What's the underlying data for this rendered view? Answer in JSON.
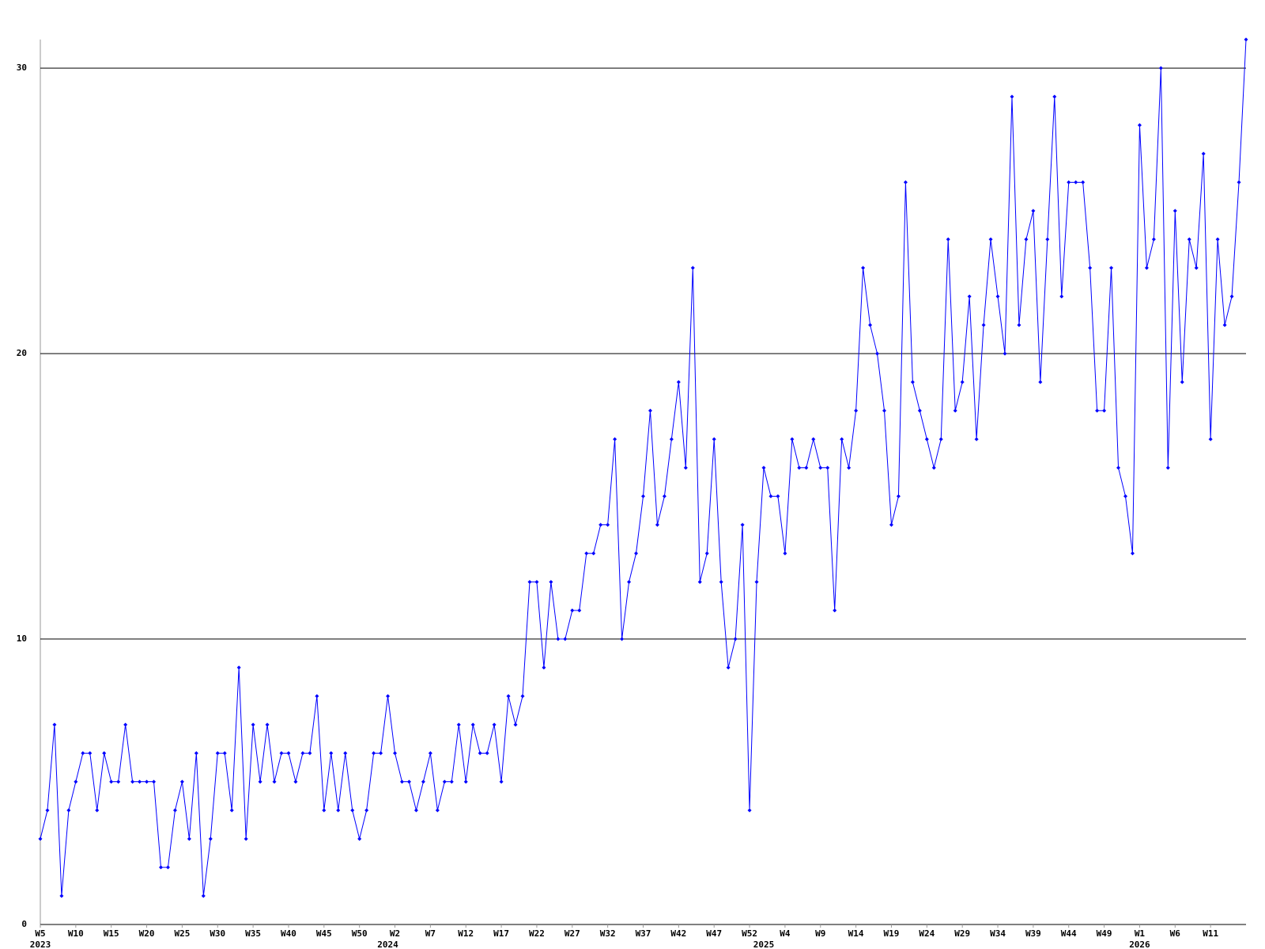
{
  "chart_data": {
    "type": "line",
    "categories": [
      "W5",
      null,
      null,
      null,
      null,
      "W10",
      null,
      null,
      null,
      null,
      "W15",
      null,
      null,
      null,
      null,
      "W20",
      null,
      null,
      null,
      null,
      "W25",
      null,
      null,
      null,
      null,
      "W30",
      null,
      null,
      null,
      null,
      "W35",
      null,
      null,
      null,
      null,
      "W40",
      null,
      null,
      null,
      null,
      "W45",
      null,
      null,
      null,
      null,
      "W50",
      null,
      null,
      null,
      null,
      "W2",
      null,
      null,
      null,
      null,
      "W7",
      null,
      null,
      null,
      null,
      "W12",
      null,
      null,
      null,
      null,
      "W17",
      null,
      null,
      null,
      null,
      "W22",
      null,
      null,
      null,
      null,
      "W27",
      null,
      null,
      null,
      null,
      "W32",
      null,
      null,
      null,
      null,
      "W37",
      null,
      null,
      null,
      null,
      "W42",
      null,
      null,
      null,
      null,
      "W47",
      null,
      null,
      null,
      null,
      "W52",
      null,
      null,
      null,
      null,
      "W4",
      null,
      null,
      null,
      null,
      "W9",
      null,
      null,
      null,
      null,
      "W14",
      null,
      null,
      null,
      null,
      "W19",
      null,
      null,
      null,
      null,
      "W24",
      null,
      null,
      null,
      null,
      "W29",
      null,
      null,
      null,
      null,
      "W34",
      null,
      null,
      null,
      null,
      "W39",
      null,
      null,
      null,
      null,
      "W44",
      null,
      null,
      null,
      null,
      "W49",
      null,
      null,
      null,
      null,
      "W1",
      null,
      null,
      null,
      null,
      "W6",
      null,
      null,
      null,
      null,
      "W11",
      null,
      null,
      null,
      null,
      null
    ],
    "category_years": [
      "2023",
      null,
      null,
      null,
      null,
      null,
      null,
      null,
      null,
      null,
      null,
      null,
      null,
      null,
      null,
      null,
      null,
      null,
      null,
      null,
      null,
      null,
      null,
      null,
      null,
      null,
      null,
      null,
      null,
      null,
      null,
      null,
      null,
      null,
      null,
      null,
      null,
      null,
      null,
      null,
      null,
      null,
      null,
      null,
      null,
      null,
      null,
      null,
      null,
      "2024",
      null,
      null,
      null,
      null,
      null,
      null,
      null,
      null,
      null,
      null,
      null,
      null,
      null,
      null,
      null,
      null,
      null,
      null,
      null,
      null,
      null,
      null,
      null,
      null,
      null,
      null,
      null,
      null,
      null,
      null,
      null,
      null,
      null,
      null,
      null,
      null,
      null,
      null,
      null,
      null,
      null,
      null,
      null,
      null,
      null,
      null,
      null,
      null,
      null,
      null,
      null,
      null,
      "2025",
      null,
      null,
      null,
      null,
      null,
      null,
      null,
      null,
      null,
      null,
      null,
      null,
      null,
      null,
      null,
      null,
      null,
      null,
      null,
      null,
      null,
      null,
      null,
      null,
      null,
      null,
      null,
      null,
      null,
      null,
      null,
      null,
      null,
      null,
      null,
      null,
      null,
      null,
      null,
      null,
      null,
      null,
      null,
      null,
      null,
      null,
      null,
      null,
      null,
      null,
      null,
      null,
      "2026",
      null,
      null,
      null,
      null,
      null,
      null,
      null,
      null,
      null,
      null,
      null,
      null,
      null,
      null,
      null
    ],
    "series": [
      {
        "color": "#0000ff",
        "values": [
          3,
          4,
          7,
          1,
          4,
          5,
          6,
          6,
          4,
          6,
          5,
          5,
          7,
          5,
          5,
          5,
          5,
          2,
          2,
          4,
          5,
          3,
          6,
          1,
          3,
          6,
          6,
          4,
          9,
          3,
          7,
          5,
          7,
          5,
          6,
          6,
          5,
          6,
          6,
          8,
          4,
          6,
          4,
          6,
          4,
          3,
          4,
          6,
          6,
          8,
          6,
          5,
          5,
          4,
          5,
          6,
          4,
          5,
          5,
          7,
          5,
          7,
          6,
          6,
          7,
          5,
          8,
          7,
          8,
          12,
          12,
          9,
          12,
          10,
          10,
          11,
          11,
          13,
          13,
          14,
          14,
          17,
          10,
          12,
          13,
          15,
          18,
          14,
          15,
          17,
          19,
          16,
          23,
          12,
          13,
          17,
          12,
          9,
          10,
          14,
          4,
          12,
          16,
          15,
          15,
          13,
          17,
          16,
          16,
          17,
          16,
          16,
          11,
          17,
          16,
          18,
          23,
          21,
          20,
          18,
          14,
          15,
          26,
          19,
          18,
          17,
          16,
          17,
          24,
          18,
          19,
          22,
          17,
          21,
          24,
          22,
          20,
          29,
          21,
          24,
          25,
          19,
          24,
          29,
          22,
          26,
          26,
          26,
          23,
          18,
          18,
          23,
          16,
          15,
          13,
          28,
          23,
          24,
          30,
          16,
          25,
          19,
          24,
          23,
          27,
          17,
          24,
          21,
          22,
          26,
          31
        ]
      }
    ],
    "ylim": [
      0,
      31
    ],
    "yticks": [
      0,
      10,
      20,
      30
    ],
    "grid": true,
    "markers": true
  }
}
